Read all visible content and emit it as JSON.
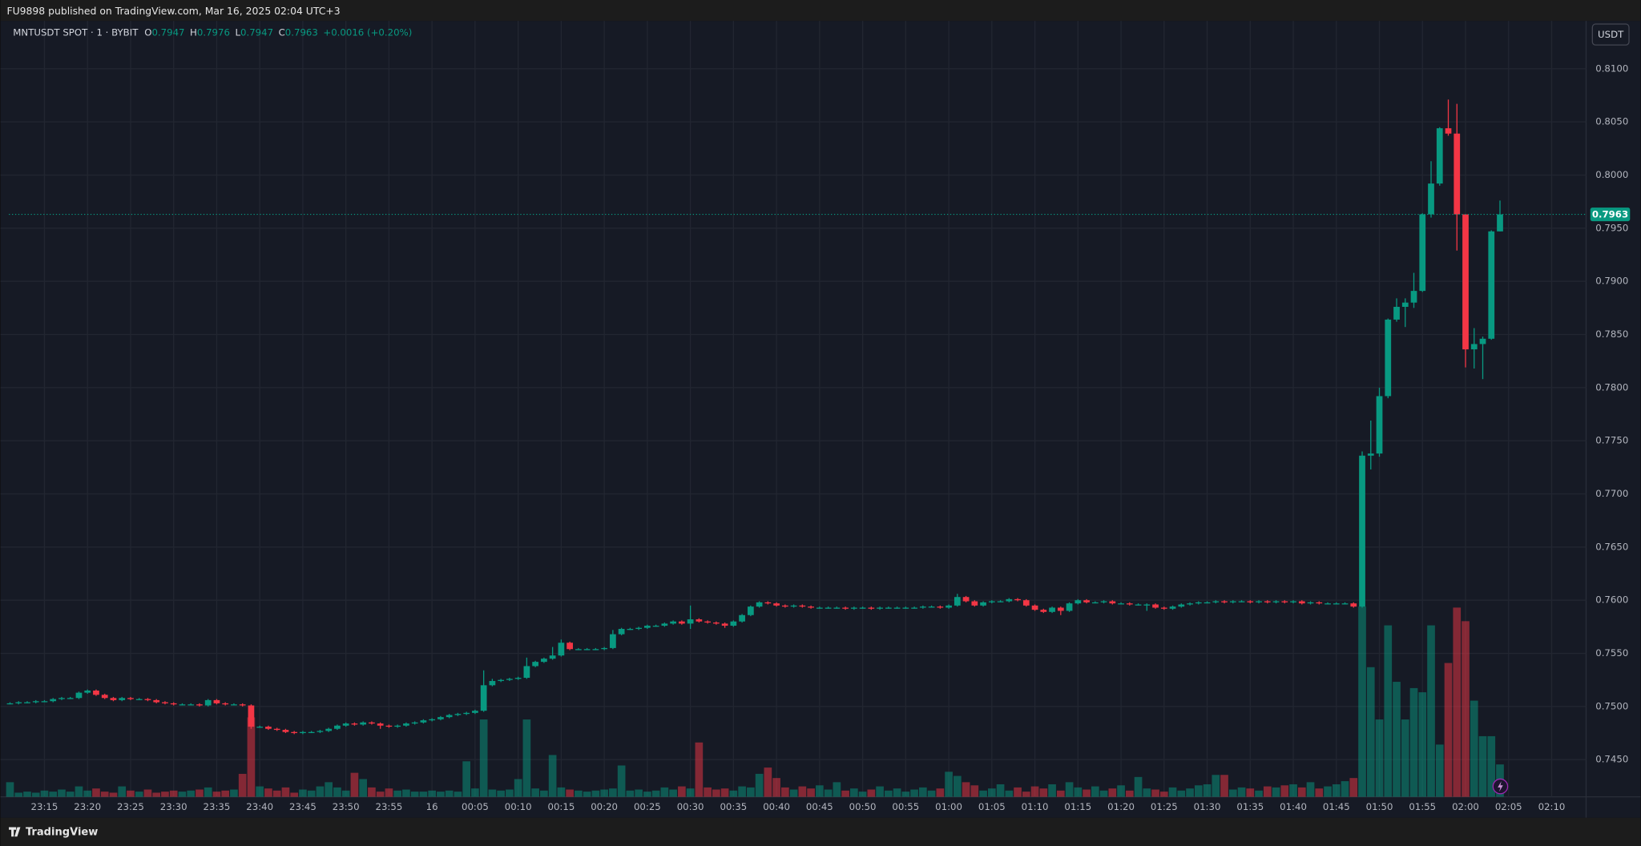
{
  "header": {
    "text": "FU9898 published on TradingView.com, Mar 16, 2025 02:04 UTC+3"
  },
  "footer": {
    "brand": "TradingView"
  },
  "currency_button": "USDT",
  "legend": {
    "symbol": "MNTUSDT SPOT · 1 · BYBIT",
    "open_label": "O",
    "open": "0.7947",
    "high_label": "H",
    "high": "0.7976",
    "low_label": "L",
    "low": "0.7947",
    "close_label": "C",
    "close": "0.7963",
    "change": "+0.0016 (+0.20%)"
  },
  "chart_data": {
    "type": "candlestick",
    "up_color": "#089981",
    "down_color": "#f23645",
    "grid": true,
    "xlim": [
      -49.13,
      134
    ],
    "ylim": [
      0.7415,
      0.8145
    ],
    "yticks": [
      {
        "value": 0.745,
        "label": "0.7450"
      },
      {
        "value": 0.75,
        "label": "0.7500"
      },
      {
        "value": 0.755,
        "label": "0.7550"
      },
      {
        "value": 0.76,
        "label": "0.7600"
      },
      {
        "value": 0.765,
        "label": "0.7650"
      },
      {
        "value": 0.77,
        "label": "0.7700"
      },
      {
        "value": 0.775,
        "label": "0.7750"
      },
      {
        "value": 0.78,
        "label": "0.7800"
      },
      {
        "value": 0.785,
        "label": "0.7850"
      },
      {
        "value": 0.79,
        "label": "0.7900"
      },
      {
        "value": 0.795,
        "label": "0.7950"
      },
      {
        "value": 0.8,
        "label": "0.8000"
      },
      {
        "value": 0.805,
        "label": "0.8050"
      },
      {
        "value": 0.81,
        "label": "0.8100"
      }
    ],
    "xticks": [
      {
        "value": -45,
        "label": "23:15"
      },
      {
        "value": -40,
        "label": "23:20"
      },
      {
        "value": -35,
        "label": "23:25"
      },
      {
        "value": -30,
        "label": "23:30"
      },
      {
        "value": -25,
        "label": "23:35"
      },
      {
        "value": -20,
        "label": "23:40"
      },
      {
        "value": -15,
        "label": "23:45"
      },
      {
        "value": -10,
        "label": "23:50"
      },
      {
        "value": -5,
        "label": "23:55"
      },
      {
        "value": 0,
        "label": "16"
      },
      {
        "value": 5,
        "label": "00:05"
      },
      {
        "value": 10,
        "label": "00:10"
      },
      {
        "value": 15,
        "label": "00:15"
      },
      {
        "value": 20,
        "label": "00:20"
      },
      {
        "value": 25,
        "label": "00:25"
      },
      {
        "value": 30,
        "label": "00:30"
      },
      {
        "value": 35,
        "label": "00:35"
      },
      {
        "value": 40,
        "label": "00:40"
      },
      {
        "value": 45,
        "label": "00:45"
      },
      {
        "value": 50,
        "label": "00:50"
      },
      {
        "value": 55,
        "label": "00:55"
      },
      {
        "value": 60,
        "label": "01:00"
      },
      {
        "value": 65,
        "label": "01:05"
      },
      {
        "value": 70,
        "label": "01:10"
      },
      {
        "value": 75,
        "label": "01:15"
      },
      {
        "value": 80,
        "label": "01:20"
      },
      {
        "value": 85,
        "label": "01:25"
      },
      {
        "value": 90,
        "label": "01:30"
      },
      {
        "value": 95,
        "label": "01:35"
      },
      {
        "value": 100,
        "label": "01:40"
      },
      {
        "value": 105,
        "label": "01:45"
      },
      {
        "value": 110,
        "label": "01:50"
      },
      {
        "value": 115,
        "label": "01:55"
      },
      {
        "value": 120,
        "label": "02:00"
      },
      {
        "value": 125,
        "label": "02:05"
      },
      {
        "value": 130,
        "label": "02:10"
      }
    ],
    "last_price": {
      "value": 0.7963,
      "label": "0.7963"
    },
    "x": [
      -49,
      -48,
      -47,
      -46,
      -45,
      -44,
      -43,
      -42,
      -41,
      -40,
      -39,
      -38,
      -37,
      -36,
      -35,
      -34,
      -33,
      -32,
      -31,
      -30,
      -29,
      -28,
      -27,
      -26,
      -25,
      -24,
      -23,
      -22,
      -21,
      -20,
      -19,
      -18,
      -17,
      -16,
      -15,
      -14,
      -13,
      -12,
      -11,
      -10,
      -9,
      -8,
      -7,
      -6,
      -5,
      -4,
      -3,
      -2,
      -1,
      0,
      1,
      2,
      3,
      4,
      5,
      6,
      7,
      8,
      9,
      10,
      11,
      12,
      13,
      14,
      15,
      16,
      17,
      18,
      19,
      20,
      21,
      22,
      23,
      24,
      25,
      26,
      27,
      28,
      29,
      30,
      31,
      32,
      33,
      34,
      35,
      36,
      37,
      38,
      39,
      40,
      41,
      42,
      43,
      44,
      45,
      46,
      47,
      48,
      49,
      50,
      51,
      52,
      53,
      54,
      55,
      56,
      57,
      58,
      59,
      60,
      61,
      62,
      63,
      64,
      65,
      66,
      67,
      68,
      69,
      70,
      71,
      72,
      73,
      74,
      75,
      76,
      77,
      78,
      79,
      80,
      81,
      82,
      83,
      84,
      85,
      86,
      87,
      88,
      89,
      90,
      91,
      92,
      93,
      94,
      95,
      96,
      97,
      98,
      99,
      100,
      101,
      102,
      103,
      104,
      105,
      106,
      107,
      108,
      109,
      110,
      111,
      112,
      113,
      114,
      115,
      116,
      117,
      118,
      119,
      120,
      121,
      122,
      123,
      124
    ],
    "open": [
      0.7503,
      0.7503,
      0.7504,
      0.7504,
      0.7505,
      0.7505,
      0.7507,
      0.7508,
      0.7508,
      0.7513,
      0.7515,
      0.7511,
      0.7508,
      0.7506,
      0.7508,
      0.7507,
      0.7507,
      0.7506,
      0.7504,
      0.7503,
      0.7502,
      0.7502,
      0.7502,
      0.7501,
      0.7506,
      0.7503,
      0.7502,
      0.7502,
      0.7501,
      0.7481,
      0.7481,
      0.7479,
      0.7478,
      0.7476,
      0.7475,
      0.7476,
      0.7476,
      0.7477,
      0.7479,
      0.7482,
      0.7484,
      0.7483,
      0.7485,
      0.7484,
      0.7482,
      0.7481,
      0.7482,
      0.7484,
      0.7485,
      0.7487,
      0.7488,
      0.749,
      0.7492,
      0.7493,
      0.7494,
      0.7496,
      0.752,
      0.7524,
      0.7525,
      0.7526,
      0.7527,
      0.7538,
      0.7542,
      0.7545,
      0.7548,
      0.756,
      0.7554,
      0.7554,
      0.7554,
      0.7554,
      0.7555,
      0.7568,
      0.7573,
      0.7573,
      0.7574,
      0.7576,
      0.7576,
      0.7578,
      0.758,
      0.7578,
      0.7582,
      0.758,
      0.7579,
      0.7578,
      0.7576,
      0.758,
      0.7586,
      0.7594,
      0.7598,
      0.7597,
      0.7595,
      0.7594,
      0.7595,
      0.7594,
      0.7593,
      0.7593,
      0.7593,
      0.7593,
      0.7592,
      0.7593,
      0.7593,
      0.7592,
      0.7593,
      0.7593,
      0.7593,
      0.7593,
      0.7593,
      0.7594,
      0.7594,
      0.7593,
      0.7595,
      0.7603,
      0.7599,
      0.7595,
      0.7598,
      0.7599,
      0.7599,
      0.7601,
      0.76,
      0.7595,
      0.7591,
      0.7589,
      0.7593,
      0.759,
      0.7597,
      0.76,
      0.7598,
      0.7598,
      0.7599,
      0.7597,
      0.7597,
      0.7596,
      0.7596,
      0.7596,
      0.7593,
      0.7592,
      0.7594,
      0.7596,
      0.7597,
      0.7598,
      0.7598,
      0.7599,
      0.7598,
      0.7599,
      0.7599,
      0.7598,
      0.7599,
      0.7598,
      0.7599,
      0.7598,
      0.7599,
      0.7597,
      0.7598,
      0.7597,
      0.7597,
      0.7597,
      0.7597,
      0.7594,
      0.7736,
      0.7738,
      0.7792,
      0.7864,
      0.7876,
      0.788,
      0.7891,
      0.7963,
      0.7992,
      0.8044,
      0.8039,
      0.7963,
      0.7836,
      0.7841,
      0.7846,
      0.7947
    ],
    "high": [
      0.7504,
      0.7505,
      0.7505,
      0.7506,
      0.7506,
      0.7508,
      0.7509,
      0.7509,
      0.7514,
      0.7516,
      0.7516,
      0.7512,
      0.7509,
      0.7509,
      0.7509,
      0.7508,
      0.7508,
      0.7507,
      0.7505,
      0.7504,
      0.7503,
      0.7503,
      0.7503,
      0.7507,
      0.7507,
      0.7504,
      0.7503,
      0.7503,
      0.7502,
      0.7482,
      0.7482,
      0.748,
      0.7479,
      0.7477,
      0.7477,
      0.7477,
      0.7478,
      0.748,
      0.7483,
      0.7485,
      0.7485,
      0.7486,
      0.7486,
      0.7485,
      0.7483,
      0.7483,
      0.7485,
      0.7486,
      0.7488,
      0.7489,
      0.7491,
      0.7493,
      0.7494,
      0.7495,
      0.7497,
      0.7534,
      0.7526,
      0.7526,
      0.7527,
      0.7528,
      0.7546,
      0.7543,
      0.7546,
      0.7556,
      0.7563,
      0.7561,
      0.7555,
      0.7555,
      0.7555,
      0.7556,
      0.7572,
      0.7574,
      0.7574,
      0.7575,
      0.7577,
      0.7577,
      0.7579,
      0.7581,
      0.7581,
      0.7595,
      0.7583,
      0.7581,
      0.758,
      0.7579,
      0.7581,
      0.7587,
      0.7595,
      0.7599,
      0.7599,
      0.7598,
      0.7596,
      0.7596,
      0.7596,
      0.7595,
      0.7594,
      0.7594,
      0.7594,
      0.7594,
      0.7594,
      0.7594,
      0.7594,
      0.7594,
      0.7594,
      0.7594,
      0.7594,
      0.7594,
      0.7595,
      0.7595,
      0.7595,
      0.7596,
      0.7606,
      0.7604,
      0.76,
      0.7599,
      0.76,
      0.76,
      0.7602,
      0.7602,
      0.7601,
      0.7596,
      0.7592,
      0.7594,
      0.7594,
      0.7598,
      0.7601,
      0.7601,
      0.7599,
      0.76,
      0.76,
      0.7598,
      0.7598,
      0.7597,
      0.7597,
      0.7597,
      0.7594,
      0.7595,
      0.7597,
      0.7598,
      0.7599,
      0.7599,
      0.76,
      0.76,
      0.76,
      0.76,
      0.76,
      0.76,
      0.76,
      0.76,
      0.76,
      0.76,
      0.76,
      0.7599,
      0.7599,
      0.7598,
      0.7598,
      0.7598,
      0.7598,
      0.774,
      0.7769,
      0.78,
      0.7865,
      0.7884,
      0.7884,
      0.7908,
      0.7964,
      0.8013,
      0.8045,
      0.8071,
      0.8067,
      0.7963,
      0.7856,
      0.7848,
      0.7948,
      0.7976
    ],
    "low": [
      0.7502,
      0.7502,
      0.7503,
      0.7503,
      0.7504,
      0.7504,
      0.7506,
      0.7507,
      0.7507,
      0.7512,
      0.751,
      0.7507,
      0.7505,
      0.7505,
      0.7506,
      0.7506,
      0.7505,
      0.7503,
      0.7502,
      0.7501,
      0.7501,
      0.7501,
      0.75,
      0.75,
      0.7502,
      0.7501,
      0.7501,
      0.75,
      0.7479,
      0.748,
      0.7478,
      0.7477,
      0.7475,
      0.7474,
      0.7474,
      0.7475,
      0.7475,
      0.7476,
      0.7478,
      0.7481,
      0.7482,
      0.7482,
      0.7483,
      0.7479,
      0.748,
      0.748,
      0.7481,
      0.7483,
      0.7484,
      0.7486,
      0.7487,
      0.7489,
      0.7491,
      0.7492,
      0.7493,
      0.7495,
      0.7519,
      0.7523,
      0.7524,
      0.7525,
      0.7526,
      0.7537,
      0.7541,
      0.7544,
      0.7547,
      0.7553,
      0.7553,
      0.7553,
      0.7553,
      0.7553,
      0.7554,
      0.7567,
      0.7572,
      0.7572,
      0.7573,
      0.7575,
      0.7575,
      0.7577,
      0.7577,
      0.7573,
      0.7579,
      0.7578,
      0.7577,
      0.7574,
      0.7575,
      0.7579,
      0.7585,
      0.7593,
      0.7596,
      0.7594,
      0.7593,
      0.7593,
      0.7593,
      0.7592,
      0.7592,
      0.7592,
      0.7592,
      0.7591,
      0.7591,
      0.7592,
      0.7591,
      0.7591,
      0.7592,
      0.7592,
      0.7592,
      0.7592,
      0.7592,
      0.7593,
      0.7592,
      0.7592,
      0.7594,
      0.7598,
      0.7594,
      0.7594,
      0.7597,
      0.7598,
      0.7598,
      0.7599,
      0.7594,
      0.759,
      0.7588,
      0.7588,
      0.7586,
      0.7589,
      0.7596,
      0.7597,
      0.7597,
      0.7597,
      0.7596,
      0.7596,
      0.7595,
      0.7595,
      0.759,
      0.7592,
      0.7591,
      0.7591,
      0.7593,
      0.7595,
      0.7596,
      0.7597,
      0.7597,
      0.7597,
      0.7597,
      0.7598,
      0.7597,
      0.7597,
      0.7597,
      0.7597,
      0.7597,
      0.7597,
      0.7596,
      0.7596,
      0.7596,
      0.7596,
      0.7596,
      0.7596,
      0.7593,
      0.7593,
      0.7723,
      0.7735,
      0.779,
      0.7862,
      0.7857,
      0.7875,
      0.789,
      0.796,
      0.799,
      0.8037,
      0.7929,
      0.7819,
      0.7818,
      0.7808,
      0.7845,
      0.7947
    ],
    "close": [
      0.7503,
      0.7504,
      0.7504,
      0.7505,
      0.7505,
      0.7507,
      0.7508,
      0.7508,
      0.7513,
      0.7515,
      0.7511,
      0.7508,
      0.7506,
      0.7508,
      0.7507,
      0.7507,
      0.7506,
      0.7504,
      0.7503,
      0.7502,
      0.7502,
      0.7502,
      0.7501,
      0.7506,
      0.7503,
      0.7502,
      0.7502,
      0.7501,
      0.7481,
      0.7481,
      0.7479,
      0.7478,
      0.7476,
      0.7475,
      0.7476,
      0.7476,
      0.7477,
      0.7479,
      0.7482,
      0.7484,
      0.7483,
      0.7485,
      0.7484,
      0.7482,
      0.7481,
      0.7482,
      0.7484,
      0.7485,
      0.7487,
      0.7488,
      0.749,
      0.7492,
      0.7493,
      0.7494,
      0.7496,
      0.752,
      0.7524,
      0.7525,
      0.7526,
      0.7527,
      0.7538,
      0.7542,
      0.7545,
      0.7548,
      0.756,
      0.7554,
      0.7554,
      0.7554,
      0.7554,
      0.7555,
      0.7568,
      0.7573,
      0.7573,
      0.7574,
      0.7576,
      0.7576,
      0.7578,
      0.758,
      0.7578,
      0.7582,
      0.758,
      0.7579,
      0.7578,
      0.7576,
      0.758,
      0.7586,
      0.7594,
      0.7598,
      0.7597,
      0.7595,
      0.7594,
      0.7595,
      0.7594,
      0.7593,
      0.7593,
      0.7593,
      0.7593,
      0.7592,
      0.7593,
      0.7593,
      0.7592,
      0.7593,
      0.7593,
      0.7593,
      0.7593,
      0.7593,
      0.7594,
      0.7594,
      0.7593,
      0.7595,
      0.7603,
      0.7599,
      0.7595,
      0.7598,
      0.7599,
      0.7599,
      0.7601,
      0.76,
      0.7595,
      0.7591,
      0.7589,
      0.7593,
      0.759,
      0.7597,
      0.76,
      0.7598,
      0.7598,
      0.7599,
      0.7597,
      0.7597,
      0.7596,
      0.7596,
      0.7596,
      0.7593,
      0.7592,
      0.7594,
      0.7596,
      0.7597,
      0.7598,
      0.7598,
      0.7599,
      0.7598,
      0.7599,
      0.7599,
      0.7598,
      0.7599,
      0.7598,
      0.7599,
      0.7598,
      0.7599,
      0.7597,
      0.7598,
      0.7597,
      0.7597,
      0.7597,
      0.7597,
      0.7594,
      0.7736,
      0.7738,
      0.7792,
      0.7864,
      0.7876,
      0.788,
      0.7891,
      0.7963,
      0.7992,
      0.8044,
      0.8039,
      0.7963,
      0.7836,
      0.7841,
      0.7846,
      0.7947,
      0.7963
    ],
    "volume": [
      14,
      4,
      5,
      4,
      6,
      5,
      7,
      5,
      10,
      6,
      8,
      5,
      4,
      10,
      6,
      5,
      7,
      4,
      5,
      6,
      5,
      6,
      7,
      9,
      5,
      6,
      7,
      22,
      76,
      10,
      8,
      6,
      9,
      4,
      7,
      6,
      10,
      14,
      9,
      6,
      23,
      17,
      9,
      5,
      8,
      6,
      7,
      5,
      5,
      6,
      5,
      6,
      5,
      34,
      8,
      74,
      7,
      6,
      7,
      17,
      74,
      8,
      6,
      40,
      9,
      7,
      6,
      5,
      6,
      7,
      8,
      30,
      6,
      7,
      5,
      6,
      9,
      7,
      10,
      8,
      52,
      9,
      7,
      8,
      6,
      10,
      9,
      22,
      28,
      18,
      9,
      7,
      10,
      8,
      11,
      7,
      14,
      6,
      8,
      5,
      7,
      10,
      6,
      8,
      5,
      7,
      9,
      6,
      8,
      24,
      20,
      14,
      11,
      6,
      8,
      12,
      6,
      9,
      5,
      10,
      8,
      12,
      6,
      14,
      9,
      7,
      10,
      6,
      8,
      11,
      6,
      19,
      8,
      7,
      5,
      9,
      6,
      8,
      11,
      12,
      21,
      21,
      7,
      9,
      8,
      6,
      10,
      9,
      11,
      12,
      9,
      14,
      8,
      10,
      12,
      15,
      18,
      182,
      124,
      74,
      164,
      110,
      74,
      104,
      100,
      164,
      50,
      128,
      181,
      168,
      92,
      58,
      58,
      31
    ]
  }
}
